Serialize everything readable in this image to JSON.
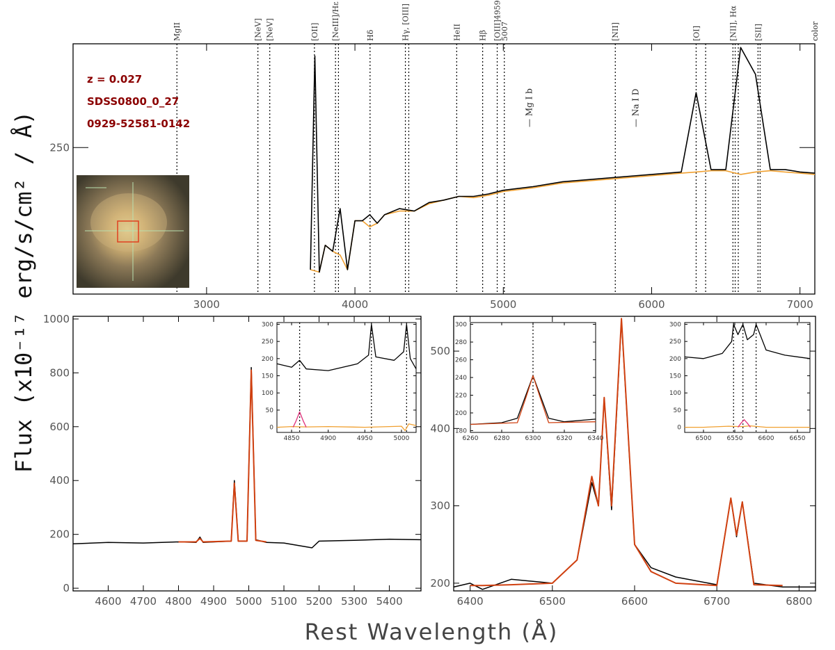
{
  "chart_data": [
    {
      "type": "line",
      "panel": "top-full-spectrum",
      "xlim": [
        2100,
        7100
      ],
      "ylim": [
        130,
        335
      ],
      "x_ticks": [
        3000,
        4000,
        5000,
        6000,
        7000
      ],
      "y_ticks": [
        250
      ],
      "annotations": [
        "z =  0.027",
        "SDSS0800_0_27",
        "0929-52581-0142"
      ],
      "emission_lines": [
        {
          "label": "MgII",
          "x": 2800
        },
        {
          "label": "[NeV]",
          "x": 3346
        },
        {
          "label": "[NeV]",
          "x": 3426
        },
        {
          "label": "[OII]",
          "x": 3727
        },
        {
          "label": "[NeIII]/Hε",
          "x": 3869
        },
        {
          "label": "",
          "x": 3889
        },
        {
          "label": "Hδ",
          "x": 4102
        },
        {
          "label": "Hγ, [OIII]",
          "x": 4340
        },
        {
          "label": "",
          "x": 4363
        },
        {
          "label": "HeII",
          "x": 4686
        },
        {
          "label": "Hβ",
          "x": 4861
        },
        {
          "label": "[OIII]4959",
          "x": 4959
        },
        {
          "label": "5007",
          "x": 5007
        },
        {
          "label": "[NII]",
          "x": 5755
        },
        {
          "label": "[OI]",
          "x": 6300
        },
        {
          "label": "",
          "x": 6364
        },
        {
          "label": "[NII], Hα",
          "x": 6548
        },
        {
          "label": "",
          "x": 6563
        },
        {
          "label": "",
          "x": 6584
        },
        {
          "label": "[SII]",
          "x": 6717
        },
        {
          "label": "",
          "x": 6731
        },
        {
          "label": "color",
          "x": 7100
        }
      ],
      "absorption_lines": [
        {
          "label": "Mg I b",
          "x": 5175
        },
        {
          "label": "Na I D",
          "x": 5893
        }
      ],
      "series": [
        {
          "color": "#000000",
          "role": "observed",
          "x": [
            3700,
            3730,
            3760,
            3800,
            3850,
            3900,
            3950,
            4000,
            4050,
            4100,
            4150,
            4200,
            4300,
            4400,
            4500,
            4600,
            4700,
            4800,
            4900,
            5000,
            5200,
            5400,
            5600,
            5800,
            6000,
            6200,
            6300,
            6400,
            6500,
            6600,
            6700,
            6800,
            6900,
            7000,
            7100
          ],
          "y": [
            150,
            325,
            148,
            170,
            165,
            200,
            150,
            190,
            190,
            195,
            188,
            195,
            200,
            198,
            205,
            207,
            210,
            210,
            212,
            215,
            218,
            222,
            224,
            226,
            228,
            230,
            295,
            232,
            232,
            332,
            310,
            232,
            232,
            230,
            229
          ]
        },
        {
          "color": "#f0a030",
          "role": "model",
          "x": [
            3700,
            3760,
            3800,
            3850,
            3900,
            3950,
            4000,
            4050,
            4100,
            4150,
            4200,
            4300,
            4400,
            4500,
            4600,
            4700,
            4800,
            4900,
            5000,
            5200,
            5400,
            5600,
            5800,
            6000,
            6200,
            6300,
            6400,
            6500,
            6600,
            6700,
            6800,
            6900,
            7000,
            7100
          ],
          "y": [
            150,
            148,
            170,
            165,
            162,
            150,
            190,
            190,
            185,
            188,
            195,
            198,
            198,
            204,
            207,
            210,
            209,
            211,
            214,
            217,
            221,
            223,
            225,
            227,
            229,
            230,
            231,
            231,
            228,
            230,
            231,
            230,
            229,
            228
          ]
        }
      ]
    },
    {
      "type": "line",
      "panel": "bottom-left-hbeta-oiii",
      "xlim": [
        4500,
        5490
      ],
      "ylim": [
        -10,
        1010
      ],
      "x_ticks": [
        4600,
        4700,
        4800,
        4900,
        5000,
        5100,
        5200,
        5300,
        5400
      ],
      "y_ticks": [
        0,
        200,
        400,
        600,
        800,
        1000
      ],
      "series": [
        {
          "color": "#000000",
          "role": "observed",
          "x": [
            4500,
            4600,
            4700,
            4800,
            4850,
            4861,
            4870,
            4950,
            4959,
            4970,
            4995,
            5007,
            5020,
            5050,
            5100,
            5180,
            5200,
            5300,
            5400,
            5490
          ],
          "y": [
            165,
            170,
            168,
            172,
            170,
            190,
            170,
            175,
            400,
            175,
            175,
            820,
            180,
            170,
            168,
            150,
            175,
            178,
            182,
            180
          ]
        },
        {
          "color": "#d04010",
          "role": "fit",
          "x": [
            4800,
            4850,
            4861,
            4870,
            4950,
            4959,
            4970,
            4995,
            5007,
            5020,
            5050
          ],
          "y": [
            172,
            172,
            185,
            172,
            175,
            390,
            175,
            175,
            810,
            178,
            172
          ]
        }
      ],
      "inset": {
        "xlim": [
          4830,
          5020
        ],
        "ylim": [
          -15,
          305
        ],
        "x_ticks": [
          4850,
          4900,
          4950,
          5000
        ],
        "y_ticks": [
          0,
          50,
          100,
          150,
          200,
          250,
          300
        ],
        "vlines": [
          4861,
          4959,
          5007
        ],
        "series": [
          {
            "color": "#000000",
            "x": [
              4830,
              4850,
              4861,
              4870,
              4900,
              4940,
              4955,
              4959,
              4965,
              4990,
              5003,
              5007,
              5012,
              5020
            ],
            "y": [
              185,
              175,
              195,
              170,
              165,
              185,
              210,
              300,
              205,
              195,
              220,
              300,
              200,
              170
            ]
          },
          {
            "color": "#f0a030",
            "x": [
              4830,
              4850,
              4870,
              4900,
              4950,
              5000,
              5005,
              5010,
              5020
            ],
            "y": [
              0,
              2,
              1,
              2,
              0,
              3,
              -10,
              10,
              5
            ]
          },
          {
            "color": "#e0307a",
            "x": [
              4852,
              4856,
              4861,
              4866,
              4870
            ],
            "y": [
              0,
              18,
              45,
              18,
              0
            ]
          }
        ]
      }
    },
    {
      "type": "line",
      "panel": "bottom-right-halpha-nii-sii",
      "xlim": [
        6380,
        6820
      ],
      "ylim": [
        190,
        545
      ],
      "x_ticks": [
        6400,
        6500,
        6600,
        6700,
        6800
      ],
      "y_ticks": [
        200,
        300,
        400,
        500
      ],
      "series": [
        {
          "color": "#000000",
          "role": "observed",
          "x": [
            6380,
            6400,
            6415,
            6450,
            6500,
            6530,
            6548,
            6556,
            6563,
            6572,
            6584,
            6600,
            6620,
            6650,
            6700,
            6717,
            6724,
            6731,
            6745,
            6780,
            6820
          ],
          "y": [
            195,
            200,
            192,
            205,
            200,
            230,
            330,
            300,
            440,
            295,
            540,
            250,
            220,
            208,
            198,
            310,
            260,
            305,
            200,
            195,
            195
          ]
        },
        {
          "color": "#d04010",
          "role": "fit",
          "x": [
            6400,
            6415,
            6450,
            6500,
            6530,
            6548,
            6556,
            6563,
            6572,
            6584,
            6600,
            6620,
            6650,
            6700,
            6717,
            6724,
            6731,
            6745,
            6780
          ],
          "y": [
            197,
            197,
            198,
            200,
            230,
            338,
            300,
            440,
            300,
            542,
            250,
            215,
            200,
            197,
            310,
            262,
            305,
            198,
            197
          ]
        }
      ],
      "inset_left": {
        "xlim": [
          6260,
          6340
        ],
        "ylim": [
          178,
          302
        ],
        "x_ticks": [
          6260,
          6280,
          6300,
          6320,
          6340
        ],
        "y_ticks": [
          180,
          200,
          220,
          240,
          260,
          280,
          300
        ],
        "vlines": [
          6300
        ],
        "series": [
          {
            "color": "#000000",
            "x": [
              6260,
              6280,
              6290,
              6300,
              6310,
              6320,
              6340
            ],
            "y": [
              187,
              189,
              194,
              242,
              194,
              190,
              193
            ]
          },
          {
            "color": "#d04010",
            "x": [
              6260,
              6290,
              6295,
              6300,
              6305,
              6310,
              6340
            ],
            "y": [
              187,
              189,
              215,
              242,
              215,
              189,
              190
            ]
          }
        ]
      },
      "inset_right": {
        "xlim": [
          6470,
          6670
        ],
        "ylim": [
          -15,
          305
        ],
        "x_ticks": [
          6500,
          6550,
          6600,
          6650
        ],
        "y_ticks": [
          0,
          50,
          100,
          150,
          200,
          250,
          300
        ],
        "vlines": [
          6548,
          6563,
          6584
        ],
        "series": [
          {
            "color": "#000000",
            "x": [
              6470,
              6500,
              6530,
              6545,
              6548,
              6555,
              6563,
              6570,
              6580,
              6584,
              6600,
              6630,
              6670
            ],
            "y": [
              205,
              200,
              215,
              250,
              300,
              270,
              300,
              255,
              270,
              300,
              225,
              210,
              200
            ]
          },
          {
            "color": "#f0a030",
            "x": [
              6470,
              6500,
              6540,
              6560,
              6575,
              6600,
              6670
            ],
            "y": [
              0,
              0,
              3,
              2,
              4,
              0,
              0
            ]
          },
          {
            "color": "#e0307a",
            "x": [
              6555,
              6560,
              6565,
              6570,
              6575
            ],
            "y": [
              0,
              12,
              22,
              12,
              0
            ]
          }
        ]
      }
    }
  ],
  "labels": {
    "ylabel": "Flux (x10⁻¹⁷ erg/s/cm² / Å)",
    "xlabel": "Rest Wavelength (Å)"
  },
  "colors": {
    "observed": "#000000",
    "model": "#f0a030",
    "fit": "#d04010",
    "narrow_component": "#6aaa2a",
    "broad_component": "#2a7acc",
    "inset_fit": "#e0307a",
    "annotation": "#8b0000"
  }
}
